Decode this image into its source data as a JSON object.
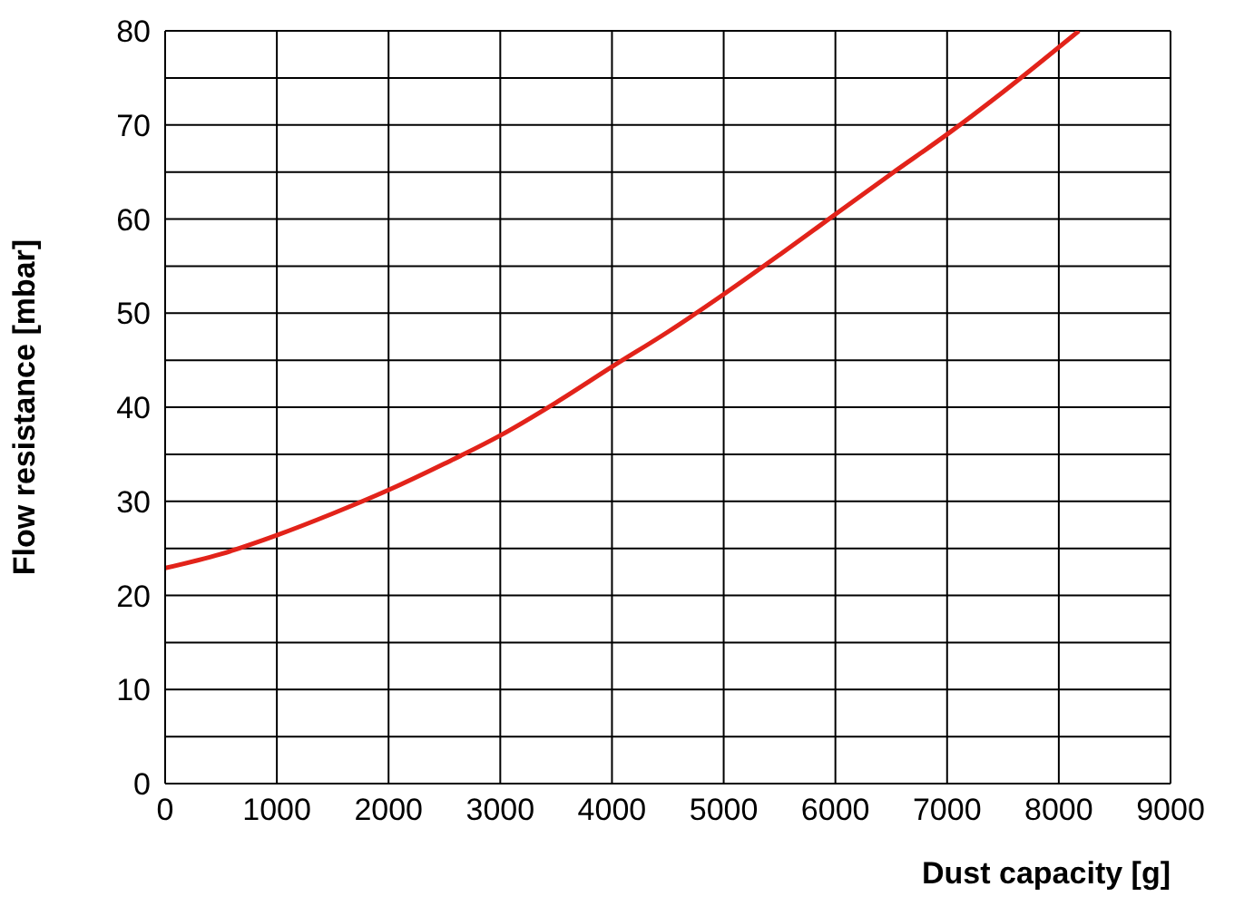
{
  "chart_data": {
    "type": "line",
    "xlabel": "Dust capacity [g]",
    "ylabel": "Flow resistance [mbar]",
    "x": [
      0,
      500,
      1000,
      1500,
      2000,
      2500,
      3000,
      3500,
      4000,
      4500,
      5000,
      5500,
      6000,
      6500,
      7000,
      7500,
      8180
    ],
    "series": [
      {
        "color": "#e2231a",
        "values": [
          22.9,
          24.4,
          26.4,
          28.7,
          31.2,
          34,
          37,
          40.5,
          44.3,
          48,
          52,
          56.2,
          60.5,
          64.8,
          69,
          73.5,
          80
        ]
      }
    ],
    "xlim": [
      0,
      9000
    ],
    "xticks": [
      0,
      1000,
      2000,
      3000,
      4000,
      5000,
      6000,
      7000,
      8000,
      9000
    ],
    "ylim": [
      0,
      80
    ],
    "yticks": [
      0,
      {
        "value": 5,
        "label": null
      },
      10,
      {
        "value": 15,
        "label": null
      },
      20,
      {
        "value": 25,
        "label": null
      },
      30,
      {
        "value": 35,
        "label": null
      },
      40,
      {
        "value": 45,
        "label": null
      },
      50,
      {
        "value": 55,
        "label": null
      },
      60,
      {
        "value": 65,
        "label": null
      },
      70,
      {
        "value": 75,
        "label": null
      },
      80
    ],
    "grid": true,
    "line_style": "solid",
    "marker": "none"
  }
}
